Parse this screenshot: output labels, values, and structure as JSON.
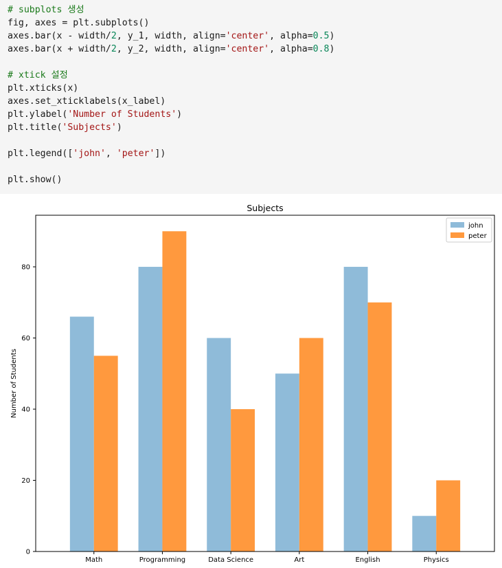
{
  "code_lines": [
    [
      {
        "t": "# subplots 생성",
        "c": "comment"
      }
    ],
    [
      {
        "t": "fig, axes = plt.subplots()",
        "c": "plain"
      }
    ],
    [
      {
        "t": "axes.bar(x - width/",
        "c": "plain"
      },
      {
        "t": "2",
        "c": "number"
      },
      {
        "t": ", y_1, width, align=",
        "c": "plain"
      },
      {
        "t": "'center'",
        "c": "string"
      },
      {
        "t": ", alpha=",
        "c": "plain"
      },
      {
        "t": "0.5",
        "c": "number"
      },
      {
        "t": ")",
        "c": "plain"
      }
    ],
    [
      {
        "t": "axes.bar(x + width/",
        "c": "plain"
      },
      {
        "t": "2",
        "c": "number"
      },
      {
        "t": ", y_2, width, align=",
        "c": "plain"
      },
      {
        "t": "'center'",
        "c": "string"
      },
      {
        "t": ", alpha=",
        "c": "plain"
      },
      {
        "t": "0.8",
        "c": "number"
      },
      {
        "t": ")",
        "c": "plain"
      }
    ],
    [],
    [
      {
        "t": "# xtick 설정",
        "c": "comment"
      }
    ],
    [
      {
        "t": "plt.xticks(x)",
        "c": "plain"
      }
    ],
    [
      {
        "t": "axes.set_xticklabels(x_label)",
        "c": "plain"
      }
    ],
    [
      {
        "t": "plt.ylabel(",
        "c": "plain"
      },
      {
        "t": "'Number of Students'",
        "c": "string"
      },
      {
        "t": ")",
        "c": "plain"
      }
    ],
    [
      {
        "t": "plt.title(",
        "c": "plain"
      },
      {
        "t": "'Subjects'",
        "c": "string"
      },
      {
        "t": ")",
        "c": "plain"
      }
    ],
    [],
    [
      {
        "t": "plt.legend([",
        "c": "plain"
      },
      {
        "t": "'john'",
        "c": "string"
      },
      {
        "t": ", ",
        "c": "plain"
      },
      {
        "t": "'peter'",
        "c": "string"
      },
      {
        "t": "])",
        "c": "plain"
      }
    ],
    [],
    [
      {
        "t": "plt.show()",
        "c": "plain"
      }
    ]
  ],
  "chart_data": {
    "type": "bar",
    "title": "Subjects",
    "xlabel": "",
    "ylabel": "Number of Students",
    "categories": [
      "Math",
      "Programming",
      "Data Science",
      "Art",
      "English",
      "Physics"
    ],
    "series": [
      {
        "name": "john",
        "values": [
          66,
          80,
          60,
          50,
          80,
          10
        ],
        "color": "#1f77b4",
        "alpha": 0.5
      },
      {
        "name": "peter",
        "values": [
          55,
          90,
          40,
          60,
          70,
          20
        ],
        "color": "#ff7f0e",
        "alpha": 0.8
      }
    ],
    "ylim": [
      0,
      94.5
    ],
    "yticks": [
      0,
      20,
      40,
      60,
      80
    ],
    "bar_width": 0.35,
    "legend_position": "top-right",
    "grid": false
  }
}
